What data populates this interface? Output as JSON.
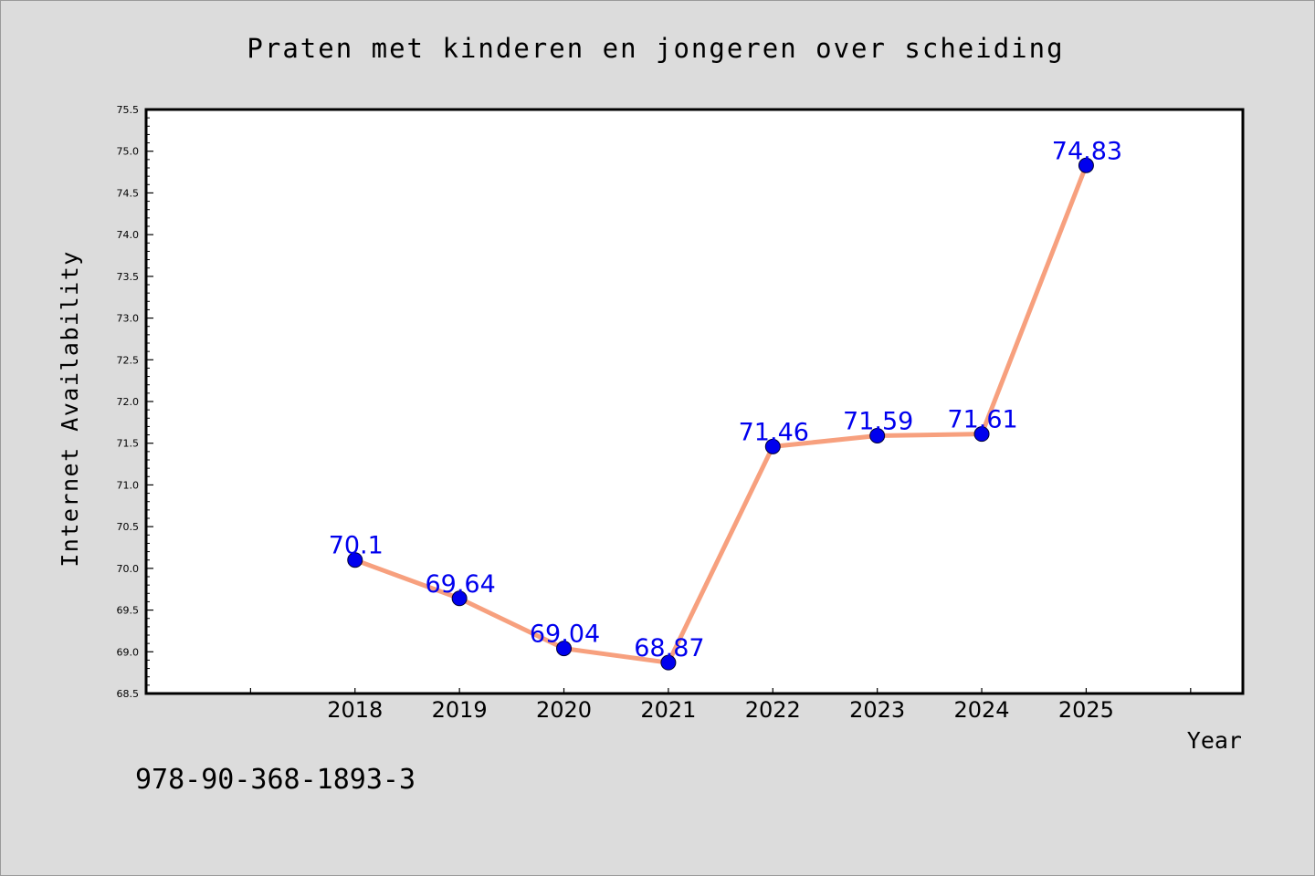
{
  "caption": "978-90-368-1893-3",
  "chart_data": {
    "type": "line",
    "title": "Praten met kinderen en jongeren over scheiding",
    "xlabel": "Year",
    "ylabel": "Internet Availability",
    "x": [
      2018,
      2019,
      2020,
      2021,
      2022,
      2023,
      2024,
      2025
    ],
    "x_tick_labels": [
      "2018",
      "2019",
      "2020",
      "2021",
      "2022",
      "2023",
      "2024",
      "2025"
    ],
    "x_range": [
      2016,
      2026.5
    ],
    "series": [
      {
        "values": [
          70.1,
          69.64,
          69.04,
          68.87,
          71.46,
          71.59,
          71.61,
          74.83
        ],
        "value_labels": [
          "70.1",
          "69.64",
          "69.04",
          "68.87",
          "71.46",
          "71.59",
          "71.61",
          "74.83"
        ]
      }
    ],
    "ylim": [
      68.5,
      75.5
    ],
    "y_tick_step": 0.5,
    "y_tick_labels": [
      "68.5",
      "69.0",
      "69.5",
      "70.0",
      "70.5",
      "71.0",
      "71.5",
      "72.0",
      "72.5",
      "73.0",
      "73.5",
      "74.0",
      "74.5",
      "75.0",
      "75.5"
    ],
    "grid": false,
    "legend": "none",
    "colors": {
      "line": "#f7a07e",
      "marker": "#0000ee",
      "value_label": "#0000ee",
      "background": "#dcdcdc",
      "plot_area": "#ffffff"
    }
  }
}
